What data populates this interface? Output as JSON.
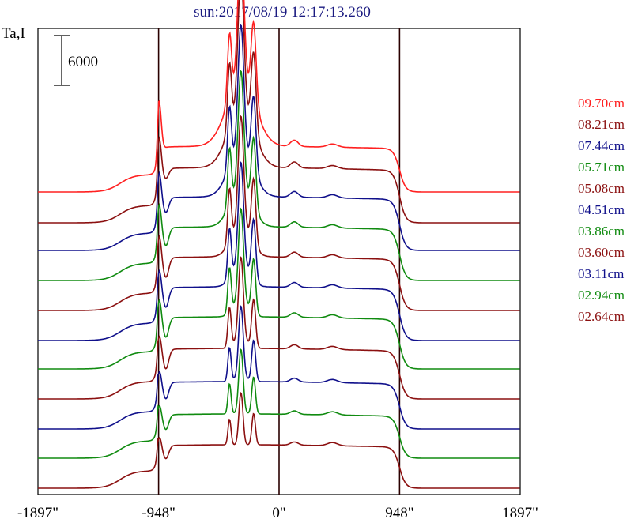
{
  "chart_data": {
    "type": "line",
    "title": "sun:2017/08/19 12:17:13.260",
    "ylabel": "Ta,I",
    "scale_bar_label": "6000",
    "x_ticks": [
      {
        "value": -1897,
        "label": "-1897\""
      },
      {
        "value": -948,
        "label": "-948\""
      },
      {
        "value": 0,
        "label": "0\""
      },
      {
        "value": 948,
        "label": "948\""
      },
      {
        "value": 1897,
        "label": "1897\""
      }
    ],
    "xlim": [
      -1897,
      1897
    ],
    "vertical_lines": [
      -948,
      0,
      948
    ],
    "grid": false,
    "legend_position": "right",
    "series": [
      {
        "name": "09.70cm",
        "color": "#ff2020",
        "baseline": 243,
        "limb_peak": 85,
        "center_peak": 185,
        "plateau": 58,
        "limb_dip": 0
      },
      {
        "name": "08.21cm",
        "color": "#8b1010",
        "baseline": 282,
        "limb_peak": 70,
        "center_peak": 183,
        "plateau": 70,
        "limb_dip": 12
      },
      {
        "name": "07.44cm",
        "color": "#10108b",
        "baseline": 317,
        "limb_peak": 62,
        "center_peak": 170,
        "plateau": 68,
        "limb_dip": 18
      },
      {
        "name": "05.71cm",
        "color": "#108b10",
        "baseline": 355,
        "limb_peak": 60,
        "center_peak": 160,
        "plateau": 68,
        "limb_dip": 22
      },
      {
        "name": "05.08cm",
        "color": "#8b1010",
        "baseline": 393,
        "limb_peak": 58,
        "center_peak": 150,
        "plateau": 68,
        "limb_dip": 24
      },
      {
        "name": "04.51cm",
        "color": "#10108b",
        "baseline": 431,
        "limb_peak": 52,
        "center_peak": 138,
        "plateau": 68,
        "limb_dip": 24
      },
      {
        "name": "03.86cm",
        "color": "#108b10",
        "baseline": 467,
        "limb_peak": 52,
        "center_peak": 125,
        "plateau": 66,
        "limb_dip": 24
      },
      {
        "name": "03.60cm",
        "color": "#8b1010",
        "baseline": 505,
        "limb_peak": 45,
        "center_peak": 110,
        "plateau": 64,
        "limb_dip": 24
      },
      {
        "name": "03.11cm",
        "color": "#10108b",
        "baseline": 543,
        "limb_peak": 40,
        "center_peak": 95,
        "plateau": 60,
        "limb_dip": 20
      },
      {
        "name": "02.94cm",
        "color": "#108b10",
        "baseline": 580,
        "limb_peak": 36,
        "center_peak": 85,
        "plateau": 56,
        "limb_dip": 18
      },
      {
        "name": "02.64cm",
        "color": "#8b1010",
        "baseline": 618,
        "limb_peak": 34,
        "center_peak": 72,
        "plateau": 55,
        "limb_dip": 16
      }
    ]
  }
}
